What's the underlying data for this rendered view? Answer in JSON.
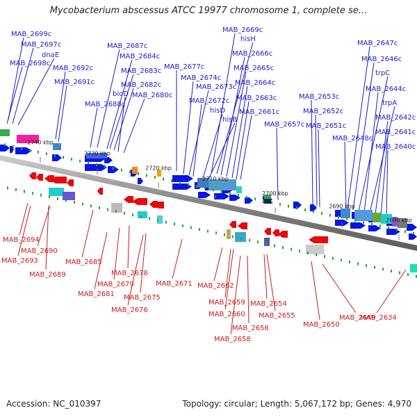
{
  "title": "Mycobacterium abscessus ATCC 19977 chromosome 1, complete se...",
  "footer": {
    "accession": "Accession: NC_010397",
    "summary": "Topology: circular; Length: 5,067,172 bp; Genes: 4,970"
  },
  "colors": {
    "forward_strand": "#0a14e6",
    "reverse_strand": "#e60a0a",
    "backbone": "#808080",
    "tick": "#22aa22",
    "label_text_forward": "#1a1acc",
    "label_text_reverse": "#cc1a1a"
  },
  "scale_labels": [
    "2740 kbp",
    "2730 kbp",
    "2720 kbp",
    "2710 kbp",
    "2700 kbp",
    "2690 kbp",
    "2680 kbp"
  ],
  "forward_genes": [
    "MAB_2699c",
    "MAB_2697c",
    "dnaE",
    "MAB_2698c",
    "MAB_2692c",
    "MAB_2691c",
    "MAB_2688c",
    "MAB_2687c",
    "MAB_2684c",
    "MAB_2683c",
    "MAB_2682c",
    "bioD",
    "MAB_2680c",
    "MAB_2677c",
    "MAB_2674c",
    "MAB_2673c",
    "MAB_2672c",
    "hisD",
    "hisB",
    "MAB_2669c",
    "hisH",
    "MAB_2666c",
    "MAB_2665c",
    "MAB_2664c",
    "MAB_2663c",
    "MAB_2661c",
    "MAB_2657c",
    "MAB_2653c",
    "MAB_2652c",
    "MAB_2651c",
    "MAB_2648c",
    "MAB_2647c",
    "MAB_2646c",
    "trpC",
    "MAB_2644c",
    "trpA",
    "MAB_2642c",
    "MAB_2641c",
    "MAB_2640c"
  ],
  "reverse_genes": [
    "MAB_2694",
    "MAB_2690",
    "MAB_2693",
    "MAB_2689",
    "MAB_2685",
    "MAB_2678",
    "MAB_2679",
    "MAB_2681",
    "MAB_2675",
    "MAB_2676",
    "MAB_2671",
    "MAB_2662",
    "MAB_2659",
    "MAB_2660",
    "MAB_2654",
    "MAB_2655",
    "MAB_2656",
    "MAB_2658",
    "MAB_2650",
    "MAB_2649",
    "MAB_2634"
  ]
}
